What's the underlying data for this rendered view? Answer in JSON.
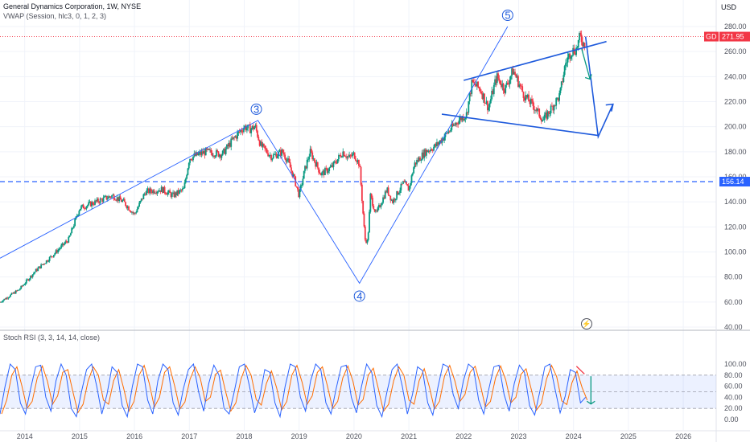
{
  "header": {
    "title": "General Dynamics Corporation, 1W, NYSE",
    "vwap": "VWAP (Session, hlc3, 0, 1, 2, 3)",
    "rsi_title": "Stoch RSI (3, 3, 14, 14, close)",
    "currency": "USD"
  },
  "price_badges": [
    {
      "label": "GD",
      "value": "271.95",
      "color": "#f23645"
    },
    {
      "label": "",
      "value": "156.14",
      "color": "#2962ff"
    }
  ],
  "wave_labels": [
    "3",
    "4",
    "5"
  ],
  "chart_data": [
    {
      "type": "candlestick",
      "title": "General Dynamics Corporation, 1W, NYSE",
      "ylabel": "USD",
      "ylim": [
        40,
        290
      ],
      "y_ticks": [
        "40.00",
        "60.00",
        "80.00",
        "100.00",
        "120.00",
        "140.00",
        "160.00",
        "180.00",
        "200.00",
        "220.00",
        "240.00",
        "260.00",
        "280.00"
      ],
      "x_ticks": [
        "2014",
        "2015",
        "2016",
        "2017",
        "2018",
        "2019",
        "2020",
        "2021",
        "2022",
        "2023",
        "2024",
        "2025",
        "2026"
      ],
      "x_range": [
        2013.55,
        2026.6
      ],
      "last_price": 271.95,
      "horizontal_level": 156.14,
      "price_path": [
        [
          2013.55,
          60
        ],
        [
          2013.9,
          70
        ],
        [
          2014.2,
          85
        ],
        [
          2014.5,
          97
        ],
        [
          2014.8,
          110
        ],
        [
          2015.0,
          135
        ],
        [
          2015.3,
          140
        ],
        [
          2015.6,
          145
        ],
        [
          2015.8,
          140
        ],
        [
          2016.0,
          130
        ],
        [
          2016.2,
          148
        ],
        [
          2016.5,
          150
        ],
        [
          2016.7,
          145
        ],
        [
          2016.9,
          150
        ],
        [
          2017.0,
          175
        ],
        [
          2017.3,
          180
        ],
        [
          2017.6,
          178
        ],
        [
          2017.8,
          190
        ],
        [
          2018.0,
          200
        ],
        [
          2018.1,
          198
        ],
        [
          2018.2,
          200
        ],
        [
          2018.3,
          185
        ],
        [
          2018.5,
          176
        ],
        [
          2018.7,
          180
        ],
        [
          2018.8,
          172
        ],
        [
          2018.9,
          160
        ],
        [
          2019.0,
          145
        ],
        [
          2019.1,
          165
        ],
        [
          2019.2,
          180
        ],
        [
          2019.4,
          162
        ],
        [
          2019.6,
          168
        ],
        [
          2019.8,
          180
        ],
        [
          2019.9,
          175
        ],
        [
          2020.0,
          178
        ],
        [
          2020.1,
          170
        ],
        [
          2020.2,
          110
        ],
        [
          2020.25,
          108
        ],
        [
          2020.3,
          145
        ],
        [
          2020.4,
          130
        ],
        [
          2020.6,
          150
        ],
        [
          2020.7,
          140
        ],
        [
          2020.9,
          155
        ],
        [
          2021.0,
          150
        ],
        [
          2021.1,
          170
        ],
        [
          2021.3,
          180
        ],
        [
          2021.5,
          185
        ],
        [
          2021.7,
          195
        ],
        [
          2021.9,
          205
        ],
        [
          2022.05,
          210
        ],
        [
          2022.15,
          235
        ],
        [
          2022.3,
          230
        ],
        [
          2022.45,
          215
        ],
        [
          2022.6,
          240
        ],
        [
          2022.75,
          230
        ],
        [
          2022.9,
          245
        ],
        [
          2023.0,
          235
        ],
        [
          2023.1,
          225
        ],
        [
          2023.3,
          215
        ],
        [
          2023.45,
          205
        ],
        [
          2023.6,
          215
        ],
        [
          2023.75,
          225
        ],
        [
          2023.85,
          250
        ],
        [
          2023.95,
          260
        ],
        [
          2024.05,
          262
        ],
        [
          2024.12,
          272
        ],
        [
          2024.2,
          265
        ],
        [
          2024.22,
          271.95
        ]
      ],
      "annotations": {
        "wave_points": [
          {
            "label": "",
            "x": 2013.55,
            "y": 95
          },
          {
            "label": "3",
            "x": 2018.25,
            "y": 205
          },
          {
            "label": "4",
            "x": 2020.1,
            "y": 75
          },
          {
            "label": "5",
            "x": 2022.8,
            "y": 280
          }
        ],
        "upper_wedge": [
          [
            2022.0,
            237
          ],
          [
            2024.6,
            268
          ]
        ],
        "lower_wedge": [
          [
            2021.6,
            210
          ],
          [
            2024.45,
            193
          ]
        ],
        "projection": [
          [
            2024.22,
            271.95
          ],
          [
            2024.45,
            192
          ],
          [
            2024.72,
            218
          ]
        ],
        "arrow_down": [
          [
            2024.15,
            262
          ],
          [
            2024.3,
            238
          ]
        ]
      }
    },
    {
      "type": "line",
      "title": "Stoch RSI (3, 3, 14, 14, close)",
      "ylim": [
        -5,
        110
      ],
      "y_ticks": [
        "0.00",
        "20.00",
        "40.00",
        "60.00",
        "80.00",
        "100.00"
      ],
      "bands": {
        "upper": 80,
        "middle": 50,
        "lower": 20
      },
      "series": [
        {
          "name": "",
          "color": "#2962ff"
        },
        {
          "name": "",
          "color": "#ff6d00"
        }
      ],
      "cycle_values": [
        10,
        60,
        100,
        90,
        30,
        10,
        55,
        95,
        98,
        40,
        15,
        70,
        100,
        80,
        20,
        5,
        50,
        90,
        100,
        60,
        10,
        45,
        95,
        85,
        25,
        5,
        60,
        100,
        95,
        35,
        10,
        70,
        100,
        90,
        30,
        8,
        55,
        90,
        100,
        50,
        15,
        65,
        98,
        80,
        20,
        10,
        50,
        95,
        100,
        60,
        12,
        40,
        90,
        85,
        30,
        5,
        60,
        100,
        95,
        40,
        15,
        70,
        100,
        90,
        30,
        10,
        55,
        95,
        98,
        40,
        12,
        60,
        100,
        85,
        25,
        5,
        50,
        90,
        100,
        60,
        10,
        45,
        95,
        88,
        30,
        8,
        58,
        100,
        95,
        45,
        20,
        70,
        100,
        92,
        35,
        10,
        55,
        95,
        98,
        45,
        15,
        65,
        98,
        85,
        25,
        8,
        50,
        95,
        100,
        55,
        12,
        42,
        90,
        85,
        30,
        40
      ]
    }
  ]
}
